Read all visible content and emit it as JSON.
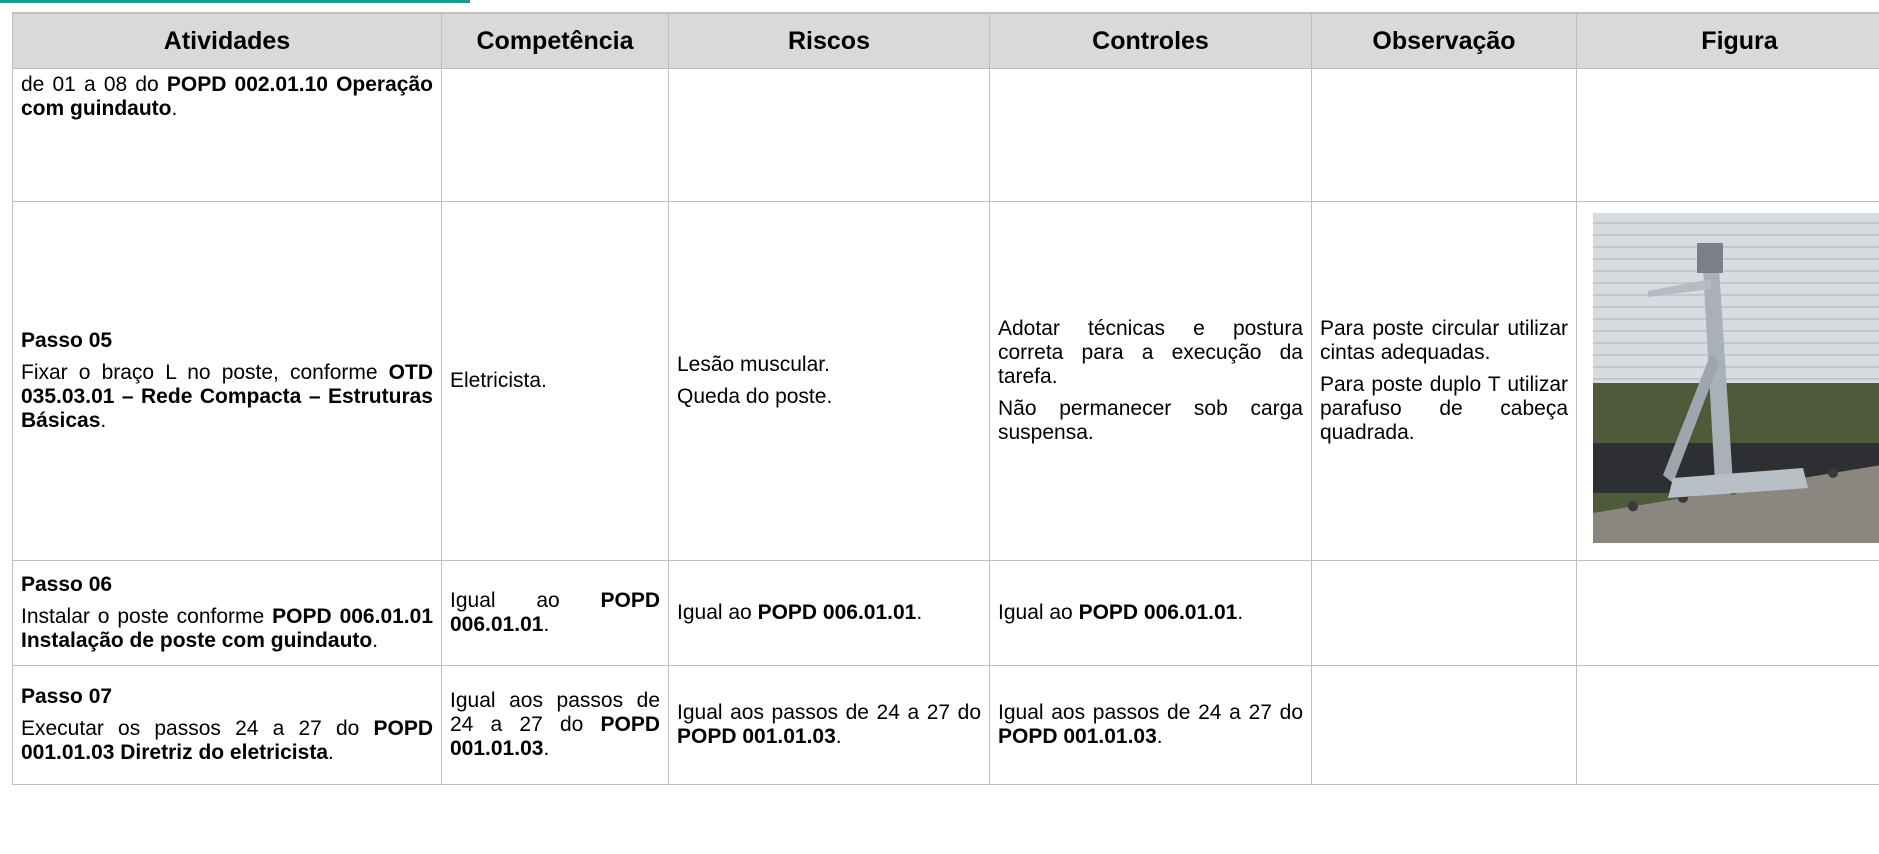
{
  "table": {
    "header": [
      "Atividades",
      "Competência",
      "Riscos",
      "Controles",
      "Observação",
      "Figura"
    ],
    "rows": [
      [
        [
          [
            {
              "t": "de 01 a 08 do "
            },
            {
              "t": "POPD 002.01.10 Operação com guindauto",
              "b": true
            },
            {
              "t": "."
            }
          ]
        ],
        [],
        [],
        [],
        [],
        []
      ],
      [
        [
          [
            {
              "t": "Passo 05",
              "b": true
            }
          ],
          [
            {
              "t": "Fixar o braço L no poste, conforme "
            },
            {
              "t": "OTD 035.03.01 – Rede Compacta – Estruturas Básicas",
              "b": true
            },
            {
              "t": "."
            }
          ]
        ],
        [
          [
            {
              "t": "Eletricista."
            }
          ]
        ],
        [
          [
            {
              "t": "Lesão muscular."
            }
          ],
          [
            {
              "t": "Queda do poste."
            }
          ]
        ],
        [
          [
            {
              "t": "Adotar técnicas e postura correta para a execução da tarefa."
            }
          ],
          [
            {
              "t": "Não permanecer sob carga suspensa."
            }
          ]
        ],
        [
          [
            {
              "t": "Para poste circular utilizar cintas adequadas."
            }
          ],
          [
            {
              "t": "Para poste duplo T utilizar parafuso de cabeça quadrada."
            }
          ]
        ],
        []
      ],
      [
        [
          [
            {
              "t": "Passo 06",
              "b": true
            }
          ],
          [
            {
              "t": "Instalar o poste conforme "
            },
            {
              "t": "POPD 006.01.01 Instalação de poste com guindauto",
              "b": true
            },
            {
              "t": "."
            }
          ]
        ],
        [
          [
            {
              "t": "Igual ao "
            },
            {
              "t": "POPD 006.01.01",
              "b": true
            },
            {
              "t": "."
            }
          ]
        ],
        [
          [
            {
              "t": "Igual ao "
            },
            {
              "t": "POPD 006.01.01",
              "b": true
            },
            {
              "t": "."
            }
          ]
        ],
        [
          [
            {
              "t": "Igual ao "
            },
            {
              "t": "POPD 006.01.01",
              "b": true
            },
            {
              "t": "."
            }
          ]
        ],
        [],
        []
      ],
      [
        [
          [
            {
              "t": "Passo 07",
              "b": true
            }
          ],
          [
            {
              "t": "Executar os passos 24 a 27 do "
            },
            {
              "t": "POPD 001.01.03 Diretriz do eletricista",
              "b": true
            },
            {
              "t": "."
            }
          ]
        ],
        [
          [
            {
              "t": "Igual aos passos de 24 a 27 do "
            },
            {
              "t": "POPD 001.01.03",
              "b": true
            },
            {
              "t": "."
            }
          ]
        ],
        [
          [
            {
              "t": "Igual aos passos de 24 a 27 do "
            },
            {
              "t": "POPD 001.01.03",
              "b": true
            },
            {
              "t": "."
            }
          ]
        ],
        [
          [
            {
              "t": "Igual aos passos de 24 a 27 do "
            },
            {
              "t": "POPD 001.01.03",
              "b": true
            },
            {
              "t": "."
            }
          ]
        ],
        [],
        []
      ]
    ]
  }
}
